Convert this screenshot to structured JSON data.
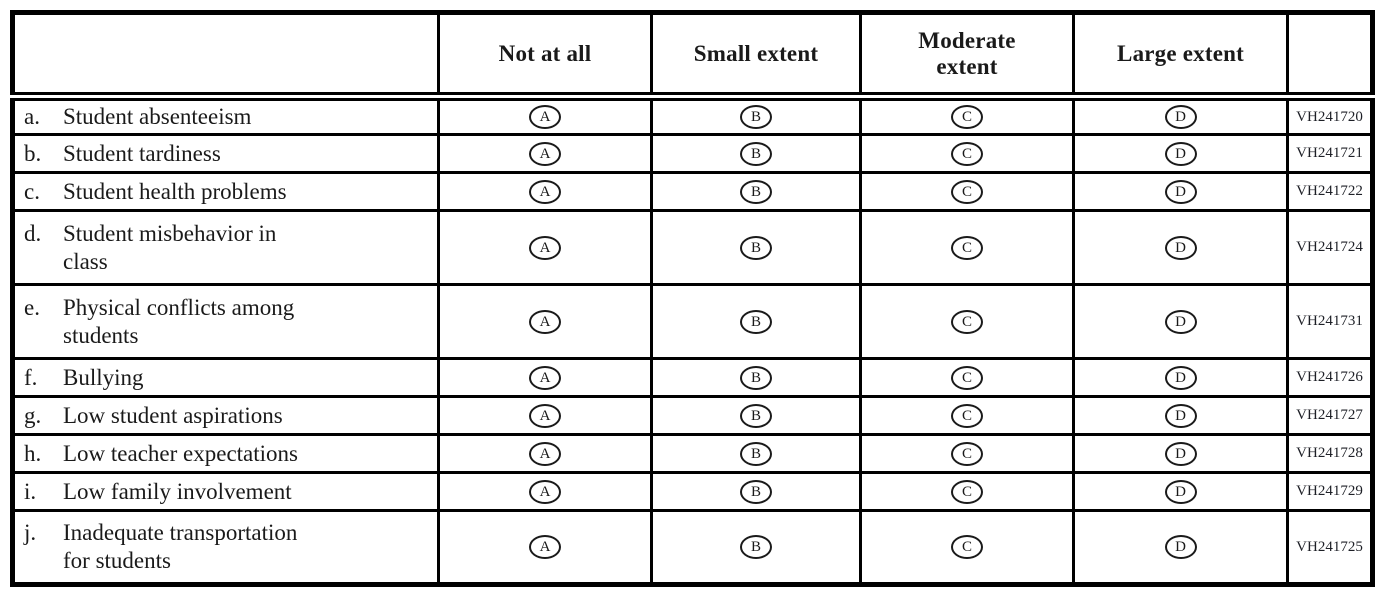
{
  "survey": {
    "columns": [
      "",
      "Not at all",
      "Small extent",
      "Moderate\nextent",
      "Large extent",
      ""
    ],
    "options": [
      "A",
      "B",
      "C",
      "D"
    ],
    "rows": [
      {
        "letter": "a.",
        "label": "Student absenteeism",
        "code": "VH241720"
      },
      {
        "letter": "b.",
        "label": "Student tardiness",
        "code": "VH241721"
      },
      {
        "letter": "c.",
        "label": "Student health problems",
        "code": "VH241722"
      },
      {
        "letter": "d.",
        "label": "Student misbehavior in\nclass",
        "code": "VH241724"
      },
      {
        "letter": "e.",
        "label": "Physical conflicts among\nstudents",
        "code": "VH241731"
      },
      {
        "letter": "f.",
        "label": "Bullying",
        "code": "VH241726"
      },
      {
        "letter": "g.",
        "label": "Low student aspirations",
        "code": "VH241727"
      },
      {
        "letter": "h.",
        "label": "Low teacher expectations",
        "code": "VH241728"
      },
      {
        "letter": "i.",
        "label": "Low family involvement",
        "code": "VH241729"
      },
      {
        "letter": "j.",
        "label": "Inadequate transportation\nfor students",
        "code": "VH241725"
      }
    ]
  }
}
